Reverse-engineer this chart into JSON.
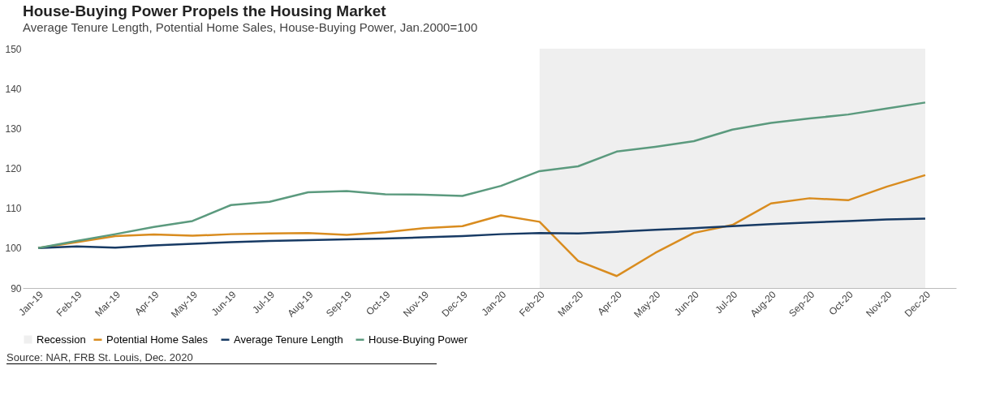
{
  "chart_data": {
    "type": "line",
    "title": "House-Buying Power Propels the Housing Market",
    "subtitle": "Average Tenure Length, Potential Home Sales, House-Buying Power, Jan.2000=100",
    "categories": [
      "Jan-19",
      "Feb-19",
      "Mar-19",
      "Apr-19",
      "May-19",
      "Jun-19",
      "Jul-19",
      "Aug-19",
      "Sep-19",
      "Oct-19",
      "Nov-19",
      "Dec-19",
      "Jan-20",
      "Feb-20",
      "Mar-20",
      "Apr-20",
      "May-20",
      "Jun-20",
      "Jul-20",
      "Aug-20",
      "Sep-20",
      "Oct-20",
      "Nov-20",
      "Dec-20"
    ],
    "series": [
      {
        "name": "Potential Home Sales",
        "color": "#d98c1f",
        "values": [
          100,
          101.5,
          103,
          103.4,
          103.1,
          103.5,
          103.7,
          103.8,
          103.3,
          104,
          105,
          105.5,
          108.2,
          106.6,
          96.8,
          93,
          98.8,
          103.8,
          105.8,
          111.2,
          112.5,
          112,
          115.4,
          118.3
        ]
      },
      {
        "name": "Average Tenure Length",
        "color": "#173a64",
        "values": [
          100,
          100.4,
          100.1,
          100.7,
          101.1,
          101.5,
          101.8,
          102,
          102.2,
          102.4,
          102.7,
          103,
          103.5,
          103.8,
          103.7,
          104.1,
          104.6,
          105,
          105.5,
          106,
          106.4,
          106.8,
          107.2,
          107.4
        ]
      },
      {
        "name": "House-Buying Power",
        "color": "#5b9a7e",
        "values": [
          100,
          101.8,
          103.5,
          105.3,
          106.8,
          110.8,
          111.6,
          114,
          114.3,
          113.5,
          113.4,
          113.1,
          115.6,
          119.3,
          120.5,
          124.2,
          125.4,
          126.8,
          129.7,
          131.4,
          132.5,
          133.5,
          135,
          136.5
        ]
      }
    ],
    "bands": [
      {
        "axis": "x",
        "from": "Feb-20",
        "to": "Dec-20",
        "label": "Recession",
        "color": "#efefef"
      }
    ],
    "ylim": [
      90,
      150
    ],
    "yticks": [
      90,
      100,
      110,
      120,
      130,
      140,
      150
    ],
    "grid": false,
    "legend": "bottom",
    "annotations": [
      "Source: NAR, FRB St. Louis, Dec. 2020"
    ]
  }
}
